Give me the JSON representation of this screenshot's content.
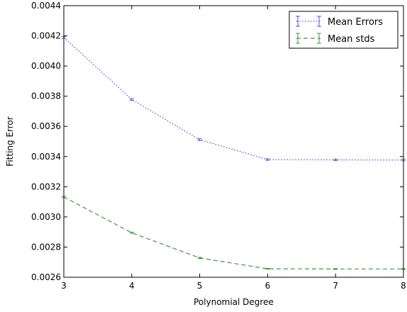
{
  "chart_data": {
    "type": "line",
    "xlabel": "Polynomial Degree",
    "ylabel": "Fitting Error",
    "xlim": [
      3,
      8
    ],
    "ylim": [
      0.0026,
      0.0044
    ],
    "xticks": [
      "3",
      "4",
      "5",
      "6",
      "7",
      "8"
    ],
    "yticks": [
      "0.0026",
      "0.0028",
      "0.0030",
      "0.0032",
      "0.0034",
      "0.0036",
      "0.0038",
      "0.0040",
      "0.0042",
      "0.0044"
    ],
    "grid": false,
    "legend_position": "top-right",
    "x": [
      3,
      4,
      5,
      6,
      7,
      8
    ],
    "series": [
      {
        "name": "Mean Errors",
        "color": "#4f4fe0",
        "linestyle": "dotted",
        "values": [
          0.00419,
          0.003778,
          0.003512,
          0.00338,
          0.003378,
          0.003377
        ],
        "errors": [
          6e-06,
          6e-06,
          6e-06,
          5e-06,
          5e-06,
          5e-06
        ]
      },
      {
        "name": "Mean stds",
        "color": "#3a9a3a",
        "linestyle": "dashed",
        "values": [
          0.003132,
          0.002895,
          0.002728,
          0.002656,
          0.002655,
          0.002655
        ],
        "errors": [
          5e-06,
          4e-06,
          4e-06,
          3e-06,
          3e-06,
          3e-06
        ]
      }
    ]
  }
}
